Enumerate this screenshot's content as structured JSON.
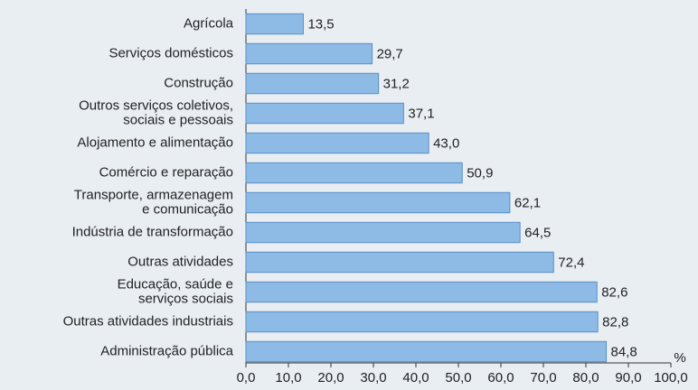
{
  "chart_data": {
    "type": "barh",
    "categories": [
      "Agrícola",
      "Serviços domésticos",
      "Construção",
      "Outros serviços coletivos,\nsociais e pessoais",
      "Alojamento e alimentação",
      "Comércio e reparação",
      "Transporte, armazenagem\ne comunicação",
      "Indústria de transformação",
      "Outras atividades",
      "Educação, saúde e\nserviços sociais",
      "Outras atividades industriais",
      "Administração pública"
    ],
    "values": [
      13.5,
      29.7,
      31.2,
      37.1,
      43.0,
      50.9,
      62.1,
      64.5,
      72.4,
      82.6,
      82.8,
      84.8
    ],
    "value_labels": [
      "13,5",
      "29,7",
      "31,2",
      "37,1",
      "43,0",
      "50,9",
      "62,1",
      "64,5",
      "72,4",
      "82,6",
      "82,8",
      "84,8"
    ],
    "color": "#8dbbe6",
    "x_label": "%",
    "xlim": [
      0,
      100
    ],
    "xticks": [
      {
        "value": 0,
        "label": "0,0"
      },
      {
        "value": 10,
        "label": "10,0"
      },
      {
        "value": 20,
        "label": "20,0"
      },
      {
        "value": 30,
        "label": "30,0"
      },
      {
        "value": 40,
        "label": "40,0"
      },
      {
        "value": 50,
        "label": "50,0"
      },
      {
        "value": 60,
        "label": "60,0"
      },
      {
        "value": 70,
        "label": "70,0"
      },
      {
        "value": 80,
        "label": "80,0"
      },
      {
        "value": 90,
        "label": "90,0"
      },
      {
        "value": 100,
        "label": "100,0"
      }
    ],
    "grid": false
  }
}
